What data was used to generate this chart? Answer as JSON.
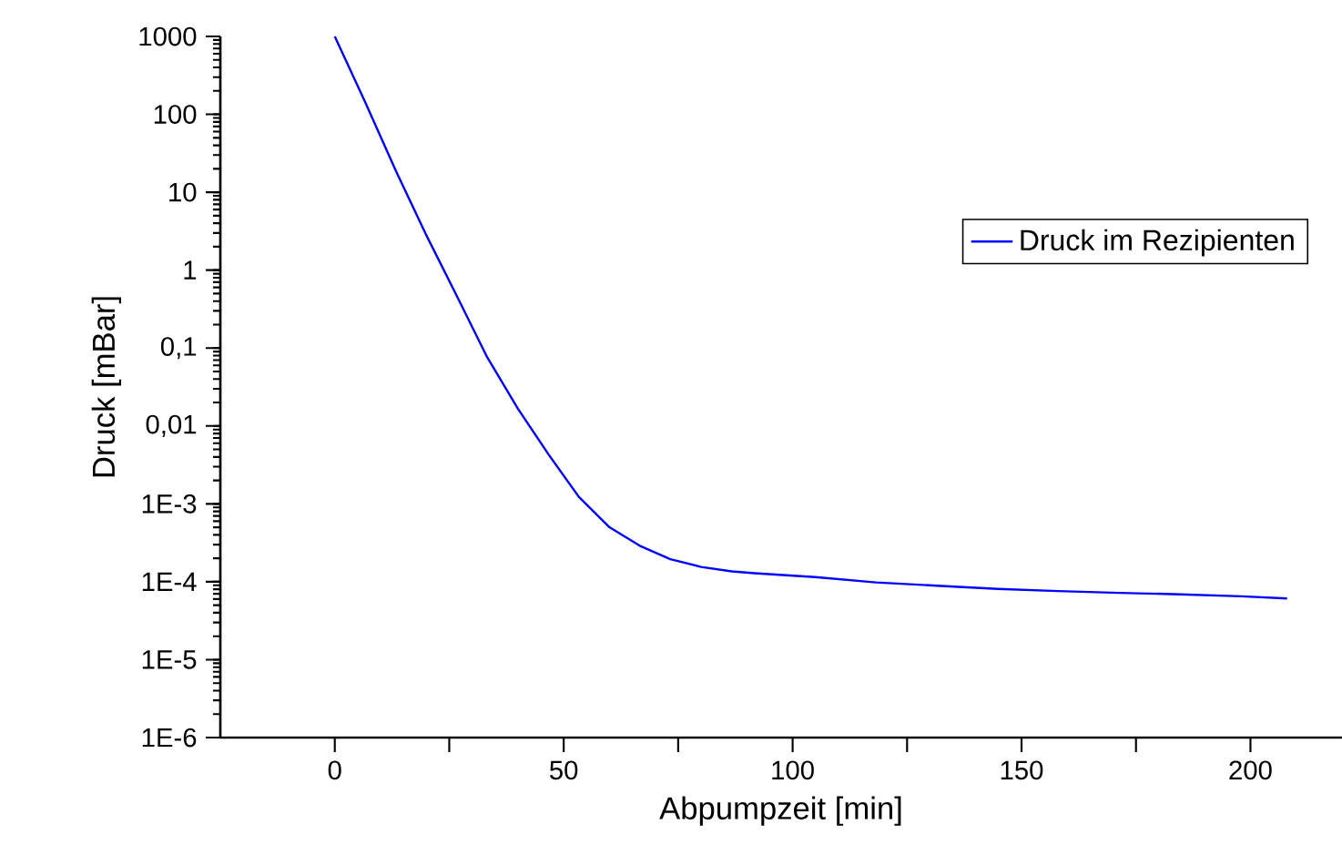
{
  "chart_data": {
    "type": "line",
    "xlabel": "Abpumpzeit [min]",
    "ylabel": "Druck [mBar]",
    "log": "y",
    "xlim": [
      -25,
      220
    ],
    "ylim": [
      1e-06,
      1000
    ],
    "xticks": [
      0,
      {
        "value": 25,
        "label": null
      },
      50,
      {
        "value": 75,
        "label": null
      },
      100,
      {
        "value": 125,
        "label": null
      },
      150,
      {
        "value": 175,
        "label": null
      },
      200
    ],
    "yticks": [
      {
        "value": 1e-06,
        "label": "1E-6"
      },
      {
        "value": 1e-05,
        "label": "1E-5"
      },
      {
        "value": 0.0001,
        "label": "1E-4"
      },
      {
        "value": 0.001,
        "label": "1E-3"
      },
      {
        "value": 0.01,
        "label": "0,01"
      },
      {
        "value": 0.1,
        "label": "0,1"
      },
      1,
      10,
      100,
      1000
    ],
    "x": [
      0,
      6.6,
      13.4,
      20,
      26.7,
      33.3,
      40,
      46.7,
      53.3,
      60,
      66.6,
      73.3,
      80,
      86.7,
      91.6,
      104.9,
      118.2,
      131.5,
      144.8,
      158,
      171.4,
      184.7,
      198,
      208
    ],
    "series": [
      {
        "name": "Druck im Rezipienten",
        "color": "#0000ff",
        "values": [
          1000,
          145,
          18.5,
          2.8,
          0.46,
          0.076,
          0.0166,
          0.0043,
          0.00123,
          0.0005,
          0.00029,
          0.000195,
          0.000155,
          0.000136,
          0.000129,
          0.000115,
          9.8e-05,
          8.9e-05,
          8.1e-05,
          7.6e-05,
          7.2e-05,
          6.9e-05,
          6.5e-05,
          6.1e-05
        ]
      }
    ],
    "legend": "top right",
    "grid": false,
    "marker": "none",
    "line_style": "solid"
  }
}
